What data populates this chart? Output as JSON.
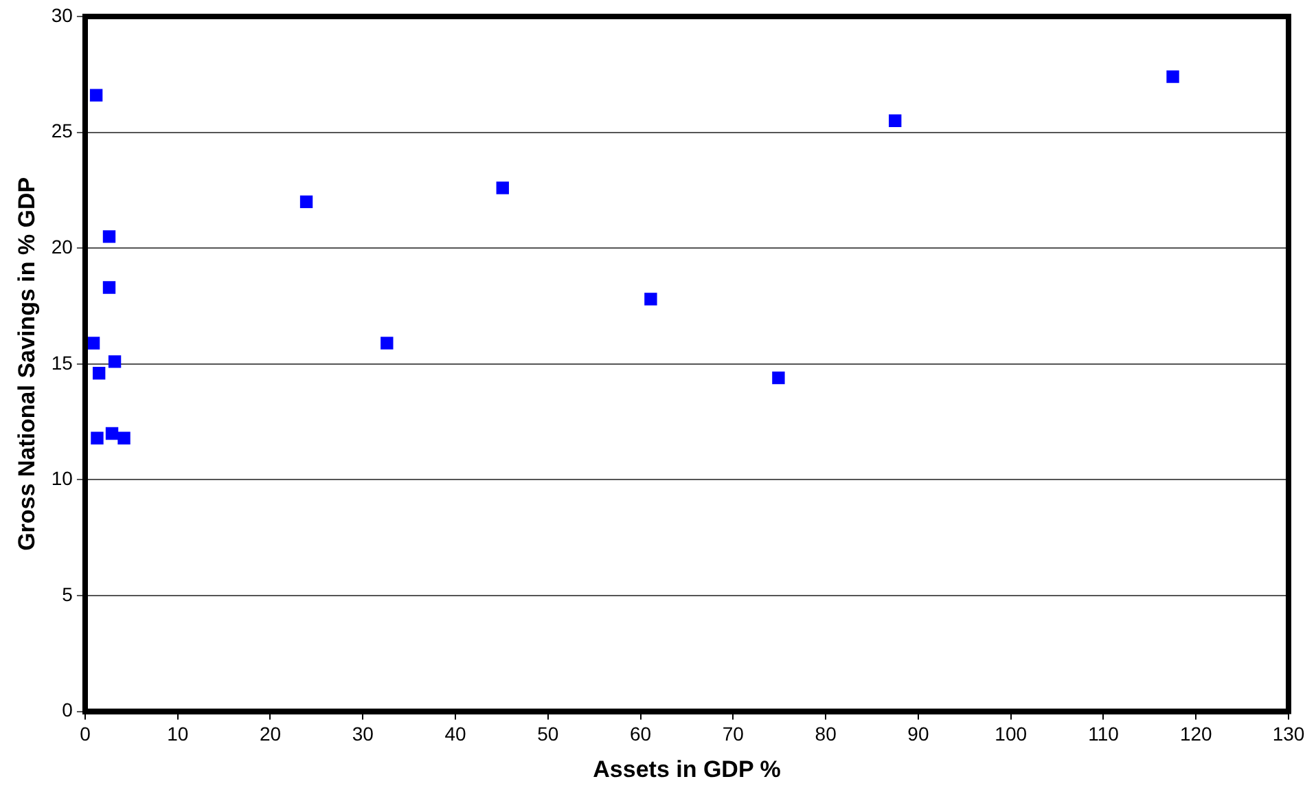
{
  "chart_data": {
    "type": "scatter",
    "xlabel": "Assets in GDP %",
    "ylabel": "Gross National Savings in % GDP",
    "x": [
      1.2,
      2.6,
      2.6,
      0.9,
      3.2,
      1.5,
      1.3,
      2.9,
      4.2,
      23.9,
      45.1,
      32.6,
      61.1,
      74.9,
      117.5,
      87.5
    ],
    "series": [
      {
        "color": "#0000ff",
        "values": [
          26.6,
          20.5,
          18.3,
          15.9,
          15.1,
          14.6,
          11.8,
          12.0,
          11.8,
          22.0,
          22.6,
          15.9,
          17.8,
          14.4,
          27.4,
          25.5
        ]
      }
    ],
    "xlim": [
      0,
      130
    ],
    "xticks": [
      0,
      10,
      20,
      30,
      40,
      50,
      60,
      70,
      80,
      90,
      100,
      110,
      120,
      130
    ],
    "ylim": [
      0,
      30
    ],
    "yticks": [
      0,
      5,
      10,
      15,
      20,
      25,
      30
    ],
    "grid": "y",
    "legend": false,
    "marker": "square"
  }
}
